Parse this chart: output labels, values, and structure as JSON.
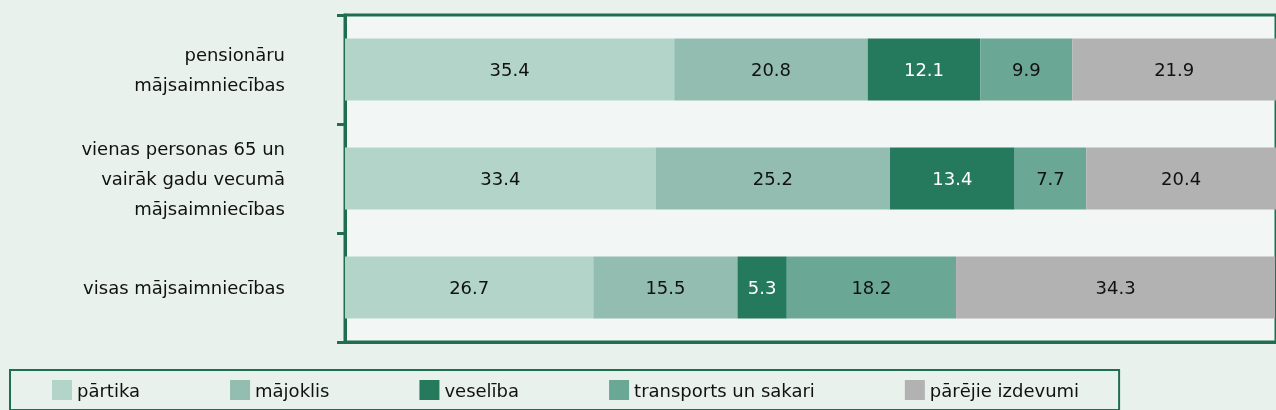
{
  "chart_data": {
    "type": "bar",
    "orientation": "horizontal",
    "stacked": true,
    "data_labels": true,
    "legend": "bottom",
    "grid": false,
    "tick_labels": "y",
    "xlim": [
      0,
      100.1
    ],
    "categories": [
      "pensionāru\nmājsaimniecības",
      "vienas personas 65 un\nvairāk gadu vecumā\nmājsaimniecības",
      "visas mājsaimniecības"
    ],
    "series": [
      {
        "name": "pārtika",
        "color": "#b3d5c9",
        "values": [
          35.4,
          33.4,
          26.7
        ]
      },
      {
        "name": "mājoklis",
        "color": "#92bdb0",
        "values": [
          20.8,
          25.2,
          15.5
        ]
      },
      {
        "name": "veselība",
        "color": "#257a5e",
        "values": [
          12.1,
          13.4,
          5.3
        ]
      },
      {
        "name": "transports un sakari",
        "color": "#6aa794",
        "values": [
          9.9,
          7.7,
          18.2
        ]
      },
      {
        "name": "pārējie izdevumi",
        "color": "#b2b2b2",
        "values": [
          21.9,
          20.4,
          34.3
        ]
      }
    ]
  }
}
